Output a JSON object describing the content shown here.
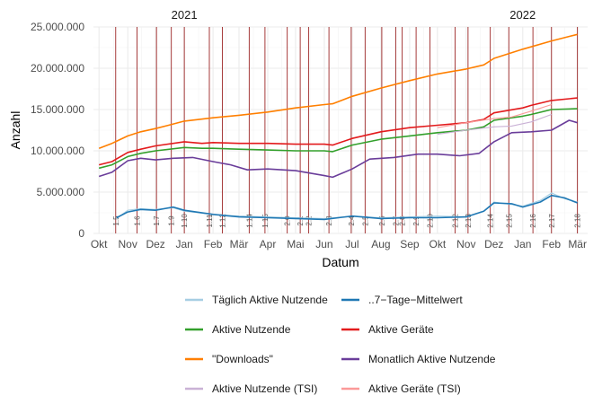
{
  "chart_data": {
    "type": "line",
    "title": "",
    "xlabel": "Datum",
    "ylabel": "Anzahl",
    "ylim": [
      0,
      25000000
    ],
    "y_ticks": [
      0,
      5000000,
      10000000,
      15000000,
      20000000,
      25000000
    ],
    "y_tick_labels": [
      "0",
      "5.000.000",
      "10.000.000",
      "15.000.000",
      "20.000.000",
      "25.000.000"
    ],
    "x_range": [
      "2020-09-25",
      "2022-03-12"
    ],
    "x_ticks": [
      "2020-10-01",
      "2020-11-01",
      "2020-12-01",
      "2021-01-01",
      "2021-02-01",
      "2021-03-01",
      "2021-04-01",
      "2021-05-01",
      "2021-06-01",
      "2021-07-01",
      "2021-08-01",
      "2021-09-01",
      "2021-10-01",
      "2021-11-01",
      "2021-12-01",
      "2022-01-01",
      "2022-02-01",
      "2022-03-01"
    ],
    "x_tick_labels": [
      "Okt",
      "Nov",
      "Dez",
      "Jan",
      "Feb",
      "Mär",
      "Apr",
      "Mai",
      "Jun",
      "Jul",
      "Aug",
      "Sep",
      "Okt",
      "Nov",
      "Dez",
      "Jan",
      "Feb",
      "Mär"
    ],
    "year_labels": [
      {
        "label": "2021",
        "x": "2021-01-01"
      },
      {
        "label": "2022",
        "x": "2022-01-01"
      }
    ],
    "grid": true,
    "legend_position": "bottom",
    "colors": {
      "taeglich": "#a6cee3",
      "mittelwert": "#1f78b4",
      "aktive_nutzende": "#33a02c",
      "aktive_geraete": "#e31a1c",
      "downloads": "#ff7f00",
      "monatlich": "#6a3d9a",
      "aktive_nutzende_tsi": "#cab2d6",
      "aktive_geraete_tsi": "#fb9a99",
      "version_line": "#8b0000"
    },
    "version_lines": [
      {
        "label": "1.5",
        "date": "2020-10-19"
      },
      {
        "label": "1.6",
        "date": "2020-11-11"
      },
      {
        "label": "1.7",
        "date": "2020-12-02"
      },
      {
        "label": "1.9",
        "date": "2020-12-18"
      },
      {
        "label": "1.10",
        "date": "2021-01-01"
      },
      {
        "label": "1.11",
        "date": "2021-01-28"
      },
      {
        "label": "1.12",
        "date": "2021-02-11"
      },
      {
        "label": "1.14",
        "date": "2021-03-12"
      },
      {
        "label": "1.15",
        "date": "2021-03-29"
      },
      {
        "label": "2.0",
        "date": "2021-04-22"
      },
      {
        "label": "2.1",
        "date": "2021-05-06"
      },
      {
        "label": "2.2",
        "date": "2021-05-15"
      },
      {
        "label": "2.3",
        "date": "2021-06-06"
      },
      {
        "label": "2.4",
        "date": "2021-06-30"
      },
      {
        "label": "2.5",
        "date": "2021-07-15"
      },
      {
        "label": "2.6",
        "date": "2021-08-02"
      },
      {
        "label": "2.7",
        "date": "2021-08-17"
      },
      {
        "label": "2.8",
        "date": "2021-08-24"
      },
      {
        "label": "2.9",
        "date": "2021-09-08"
      },
      {
        "label": "2.10",
        "date": "2021-09-23"
      },
      {
        "label": "2.12",
        "date": "2021-10-20"
      },
      {
        "label": "2.13",
        "date": "2021-11-03"
      },
      {
        "label": "2.14",
        "date": "2021-11-27"
      },
      {
        "label": "2.15",
        "date": "2021-12-17"
      },
      {
        "label": "2.16",
        "date": "2022-01-12"
      },
      {
        "label": "2.17",
        "date": "2022-02-01"
      },
      {
        "label": "2.18",
        "date": "2022-03-01"
      }
    ],
    "series": [
      {
        "key": "downloads",
        "name": "\"Downloads\"",
        "x": [
          "2020-10-01",
          "2020-10-15",
          "2020-11-01",
          "2020-11-15",
          "2020-12-01",
          "2020-12-15",
          "2021-01-01",
          "2021-02-01",
          "2021-03-01",
          "2021-04-01",
          "2021-05-01",
          "2021-06-01",
          "2021-06-10",
          "2021-07-01",
          "2021-08-01",
          "2021-09-01",
          "2021-10-01",
          "2021-11-01",
          "2021-11-20",
          "2021-12-01",
          "2022-01-01",
          "2022-02-01",
          "2022-03-01"
        ],
        "y": [
          10300000,
          10900000,
          11800000,
          12300000,
          12700000,
          13100000,
          13600000,
          14000000,
          14300000,
          14700000,
          15200000,
          15600000,
          15700000,
          16600000,
          17600000,
          18500000,
          19300000,
          19900000,
          20400000,
          21200000,
          22300000,
          23300000,
          24100000
        ]
      },
      {
        "key": "aktive_geraete",
        "name": "Aktive Geräte",
        "x": [
          "2020-10-01",
          "2020-10-15",
          "2020-11-01",
          "2020-11-15",
          "2020-12-01",
          "2021-01-01",
          "2021-01-20",
          "2021-02-01",
          "2021-03-01",
          "2021-04-01",
          "2021-05-01",
          "2021-06-01",
          "2021-06-10",
          "2021-07-01",
          "2021-08-01",
          "2021-09-01",
          "2021-10-01",
          "2021-11-01",
          "2021-11-20",
          "2021-12-01",
          "2022-01-01",
          "2022-01-10",
          "2022-02-01",
          "2022-03-01"
        ],
        "y": [
          8300000,
          8700000,
          9800000,
          10200000,
          10600000,
          11100000,
          10900000,
          11000000,
          10900000,
          10900000,
          10800000,
          10800000,
          10700000,
          11500000,
          12300000,
          12800000,
          13100000,
          13400000,
          13800000,
          14600000,
          15200000,
          15500000,
          16100000,
          16400000
        ]
      },
      {
        "key": "aktive_nutzende",
        "name": "Aktive Nutzende",
        "x": [
          "2020-10-01",
          "2020-10-15",
          "2020-11-01",
          "2020-11-15",
          "2020-12-01",
          "2021-01-01",
          "2021-01-20",
          "2021-02-01",
          "2021-03-01",
          "2021-04-01",
          "2021-05-01",
          "2021-06-01",
          "2021-06-10",
          "2021-07-01",
          "2021-08-01",
          "2021-09-01",
          "2021-10-01",
          "2021-11-01",
          "2021-11-20",
          "2021-12-01",
          "2022-01-01",
          "2022-01-10",
          "2022-02-01",
          "2022-03-01"
        ],
        "y": [
          7900000,
          8300000,
          9300000,
          9700000,
          10000000,
          10400000,
          10300000,
          10300000,
          10200000,
          10100000,
          10000000,
          10000000,
          9900000,
          10700000,
          11400000,
          11800000,
          12200000,
          12500000,
          12900000,
          13700000,
          14200000,
          14400000,
          15000000,
          15100000
        ]
      },
      {
        "key": "monatlich",
        "name": "Monatlich Aktive Nutzende",
        "x": [
          "2020-10-01",
          "2020-10-15",
          "2020-11-01",
          "2020-11-15",
          "2020-12-01",
          "2020-12-20",
          "2021-01-10",
          "2021-02-01",
          "2021-02-20",
          "2021-03-10",
          "2021-04-01",
          "2021-05-01",
          "2021-06-01",
          "2021-06-10",
          "2021-07-01",
          "2021-07-20",
          "2021-08-15",
          "2021-09-10",
          "2021-10-01",
          "2021-10-25",
          "2021-11-15",
          "2021-12-01",
          "2021-12-20",
          "2022-01-10",
          "2022-02-01",
          "2022-02-20",
          "2022-03-01"
        ],
        "y": [
          6900000,
          7400000,
          8800000,
          9100000,
          8900000,
          9100000,
          9200000,
          8700000,
          8300000,
          7700000,
          7800000,
          7600000,
          7000000,
          6800000,
          7800000,
          9000000,
          9200000,
          9600000,
          9600000,
          9400000,
          9700000,
          11100000,
          12200000,
          12300000,
          12500000,
          13700000,
          13400000
        ]
      },
      {
        "key": "aktive_nutzende_tsi",
        "name": "Aktive Nutzende (TSI)",
        "x": [
          "2021-10-01",
          "2021-11-01",
          "2021-12-01",
          "2021-12-20",
          "2022-01-10",
          "2022-02-01"
        ],
        "y": [
          12000000,
          12500000,
          12900000,
          13000000,
          13500000,
          14400000
        ]
      },
      {
        "key": "aktive_geraete_tsi",
        "name": "Aktive Geräte (TSI)",
        "x": [
          "2021-10-01",
          "2021-11-01",
          "2021-12-01",
          "2021-12-20",
          "2022-01-10",
          "2022-02-01"
        ],
        "y": [
          12800000,
          13400000,
          13900000,
          14100000,
          14800000,
          15600000
        ]
      },
      {
        "key": "taeglich",
        "name": "Täglich Aktive Nutzende",
        "x": [
          "2020-10-20",
          "2020-11-01",
          "2020-11-15",
          "2020-12-01",
          "2020-12-20",
          "2021-01-01",
          "2021-02-01",
          "2021-03-01",
          "2021-04-01",
          "2021-05-01",
          "2021-06-01",
          "2021-07-01",
          "2021-08-01",
          "2021-09-01",
          "2021-10-01",
          "2021-11-01",
          "2021-11-20",
          "2021-12-01",
          "2021-12-20",
          "2022-01-01",
          "2022-01-20",
          "2022-02-01",
          "2022-02-15",
          "2022-03-01"
        ],
        "y": [
          1800000,
          2800000,
          3000000,
          2900000,
          3100000,
          2700000,
          2300000,
          2100000,
          2000000,
          1900000,
          1800000,
          2100000,
          1900000,
          2000000,
          2100000,
          2000000,
          2700000,
          3800000,
          3500000,
          3300000,
          4000000,
          4900000,
          4200000,
          3800000
        ]
      },
      {
        "key": "mittelwert",
        "name": "..7−Tage−Mittelwert",
        "x": [
          "2020-10-20",
          "2020-11-01",
          "2020-11-15",
          "2020-12-01",
          "2020-12-20",
          "2021-01-01",
          "2021-02-01",
          "2021-03-01",
          "2021-04-01",
          "2021-05-01",
          "2021-06-01",
          "2021-07-01",
          "2021-08-01",
          "2021-09-01",
          "2021-10-01",
          "2021-11-01",
          "2021-11-20",
          "2021-12-01",
          "2021-12-20",
          "2022-01-01",
          "2022-01-20",
          "2022-02-01",
          "2022-02-15",
          "2022-03-01"
        ],
        "y": [
          1900000,
          2600000,
          2900000,
          2800000,
          3200000,
          2800000,
          2300000,
          2000000,
          1900000,
          1800000,
          1700000,
          2100000,
          1800000,
          1900000,
          1900000,
          2000000,
          2700000,
          3700000,
          3600000,
          3200000,
          3800000,
          4600000,
          4300000,
          3700000
        ]
      }
    ],
    "legend": [
      {
        "key": "taeglich",
        "label": "Täglich Aktive Nutzende"
      },
      {
        "key": "mittelwert",
        "label": "..7−Tage−Mittelwert"
      },
      {
        "key": "aktive_nutzende",
        "label": "Aktive Nutzende"
      },
      {
        "key": "aktive_geraete",
        "label": "Aktive Geräte"
      },
      {
        "key": "downloads",
        "label": "\"Downloads\""
      },
      {
        "key": "monatlich",
        "label": "Monatlich Aktive Nutzende"
      },
      {
        "key": "aktive_nutzende_tsi",
        "label": "Aktive Nutzende (TSI)"
      },
      {
        "key": "aktive_geraete_tsi",
        "label": "Aktive Geräte (TSI)"
      }
    ]
  }
}
